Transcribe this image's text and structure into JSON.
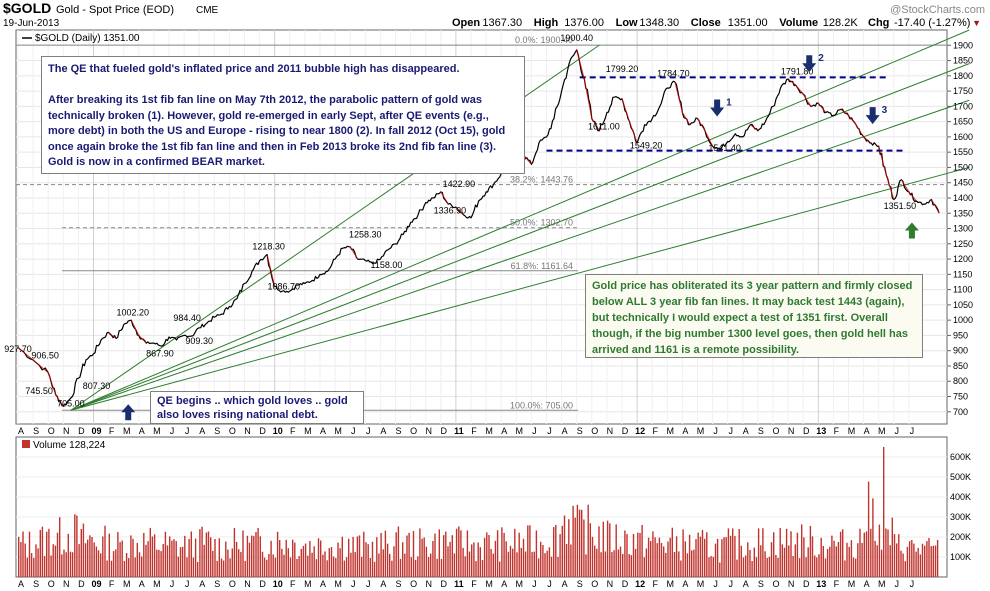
{
  "header": {
    "symbol": "$GOLD",
    "name": "Gold - Spot Price (EOD)",
    "exchange": "CME",
    "date": "19-Jun-2013",
    "watermark": "@StockCharts.com",
    "ohlc": [
      {
        "label": "Open",
        "value": "1367.30"
      },
      {
        "label": "High",
        "value": "1376.00"
      },
      {
        "label": "Low",
        "value": "1348.30"
      },
      {
        "label": "Close",
        "value": "1351.00"
      },
      {
        "label": "Volume",
        "value": "128.2K"
      }
    ],
    "chg_label": "Chg",
    "chg_value": "-17.40 (-1.27%)",
    "chg_symbol": "▼"
  },
  "colors": {
    "price_line": "#000000",
    "price_down": "#cc0000",
    "fan_line": "#2e7d2e",
    "resistance_line": "#00008b",
    "fib_line": "#888888",
    "volume_bar": "#c0342e",
    "arrow_blue": "#1a2e6e",
    "arrow_green": "#2e7d2e"
  },
  "chart_data": [
    {
      "type": "line",
      "title": "$GOLD (Daily) 1351.00",
      "ylim": [
        660,
        1950
      ],
      "y_ticks": [
        700,
        750,
        800,
        850,
        900,
        950,
        1000,
        1050,
        1100,
        1150,
        1200,
        1250,
        1300,
        1350,
        1400,
        1450,
        1500,
        1550,
        1600,
        1650,
        1700,
        1750,
        1800,
        1850,
        1900
      ],
      "x_tick_labels": [
        "A",
        "S",
        "O",
        "N",
        "D",
        "09",
        "F",
        "M",
        "A",
        "M",
        "J",
        "J",
        "A",
        "S",
        "O",
        "N",
        "D",
        "10",
        "F",
        "M",
        "A",
        "M",
        "J",
        "J",
        "A",
        "S",
        "O",
        "N",
        "D",
        "11",
        "F",
        "M",
        "A",
        "M",
        "J",
        "J",
        "A",
        "S",
        "O",
        "N",
        "D",
        "12",
        "F",
        "M",
        "A",
        "M",
        "J",
        "J",
        "A",
        "S",
        "O",
        "N",
        "D",
        "13",
        "F",
        "M",
        "A",
        "M",
        "J",
        "J"
      ],
      "x_tick_bold": [
        "09",
        "10",
        "11",
        "12",
        "13"
      ],
      "x_start": "2008-08",
      "price": [
        [
          0,
          910
        ],
        [
          1,
          870
        ],
        [
          2,
          828
        ],
        [
          2.5,
          755
        ],
        [
          3,
          718
        ],
        [
          3.5,
          745
        ],
        [
          4,
          810
        ],
        [
          4.5,
          870
        ],
        [
          5,
          890
        ],
        [
          5.5,
          935
        ],
        [
          6,
          960
        ],
        [
          6.5,
          940
        ],
        [
          7,
          985
        ],
        [
          7.5,
          1000
        ],
        [
          8,
          950
        ],
        [
          8.5,
          925
        ],
        [
          9,
          925
        ],
        [
          9.5,
          915
        ],
        [
          10,
          945
        ],
        [
          10.5,
          935
        ],
        [
          11,
          950
        ],
        [
          11.5,
          948
        ],
        [
          12,
          975
        ],
        [
          12.5,
          990
        ],
        [
          13,
          1010
        ],
        [
          13.5,
          1020
        ],
        [
          14,
          1045
        ],
        [
          14.5,
          1070
        ],
        [
          15,
          1120
        ],
        [
          15.5,
          1160
        ],
        [
          16,
          1195
        ],
        [
          16.5,
          1215
        ],
        [
          17,
          1110
        ],
        [
          17.5,
          1095
        ],
        [
          18,
          1095
        ],
        [
          18.5,
          1115
        ],
        [
          19,
          1120
        ],
        [
          19.5,
          1130
        ],
        [
          20,
          1150
        ],
        [
          20.5,
          1160
        ],
        [
          21,
          1200
        ],
        [
          21.5,
          1235
        ],
        [
          22,
          1240
        ],
        [
          22.5,
          1200
        ],
        [
          23,
          1195
        ],
        [
          23.5,
          1185
        ],
        [
          24,
          1200
        ],
        [
          24.5,
          1230
        ],
        [
          25,
          1250
        ],
        [
          25.5,
          1280
        ],
        [
          26,
          1320
        ],
        [
          26.5,
          1345
        ],
        [
          27,
          1385
        ],
        [
          27.5,
          1400
        ],
        [
          28,
          1420
        ],
        [
          28.5,
          1380
        ],
        [
          29,
          1370
        ],
        [
          29.5,
          1345
        ],
        [
          30,
          1335
        ],
        [
          30.5,
          1390
        ],
        [
          31,
          1420
        ],
        [
          31.5,
          1445
        ],
        [
          32,
          1480
        ],
        [
          32.5,
          1505
        ],
        [
          33,
          1530
        ],
        [
          33.5,
          1540
        ],
        [
          34,
          1510
        ],
        [
          34.5,
          1580
        ],
        [
          35,
          1600
        ],
        [
          35.5,
          1660
        ],
        [
          36,
          1750
        ],
        [
          36.5,
          1840
        ],
        [
          37,
          1885
        ],
        [
          37.5,
          1790
        ],
        [
          38,
          1660
        ],
        [
          38.5,
          1620
        ],
        [
          39,
          1680
        ],
        [
          39.5,
          1730
        ],
        [
          40,
          1725
        ],
        [
          40.5,
          1650
        ],
        [
          41,
          1580
        ],
        [
          41.5,
          1640
        ],
        [
          42,
          1660
        ],
        [
          42.5,
          1700
        ],
        [
          43,
          1760
        ],
        [
          43.5,
          1780
        ],
        [
          44,
          1680
        ],
        [
          44.5,
          1640
        ],
        [
          45,
          1660
        ],
        [
          45.5,
          1620
        ],
        [
          46,
          1570
        ],
        [
          46.5,
          1560
        ],
        [
          47,
          1585
        ],
        [
          47.5,
          1610
        ],
        [
          48,
          1600
        ],
        [
          48.5,
          1640
        ],
        [
          49,
          1620
        ],
        [
          49.5,
          1650
        ],
        [
          50,
          1700
        ],
        [
          50.5,
          1760
        ],
        [
          51,
          1790
        ],
        [
          51.5,
          1770
        ],
        [
          52,
          1740
        ],
        [
          52.5,
          1700
        ],
        [
          53,
          1710
        ],
        [
          53.5,
          1680
        ],
        [
          54,
          1670
        ],
        [
          54.5,
          1690
        ],
        [
          55,
          1670
        ],
        [
          55.5,
          1640
        ],
        [
          56,
          1600
        ],
        [
          56.5,
          1580
        ],
        [
          57,
          1570
        ],
        [
          57.5,
          1475
        ],
        [
          58,
          1395
        ],
        [
          58.5,
          1460
        ],
        [
          59,
          1420
        ],
        [
          59.5,
          1390
        ],
        [
          60,
          1380
        ],
        [
          60.5,
          1395
        ],
        [
          61,
          1351
        ]
      ],
      "fib_levels": [
        {
          "label": "0.0%: 1900.40",
          "value": 1900.4
        },
        {
          "label": "38.2%: 1443.76",
          "value": 1443.76
        },
        {
          "label": "50.0%: 1302.70",
          "value": 1302.7
        },
        {
          "label": "61.8%: 1161.64",
          "value": 1161.64
        },
        {
          "label": "100.0%: 705.00",
          "value": 705
        }
      ],
      "resistance_levels": [
        1795,
        1555
      ],
      "fan_lines": [
        {
          "from": [
            3.5,
            705
          ],
          "to": [
            38.5,
            1900.4
          ]
        },
        {
          "from": [
            3.5,
            705
          ],
          "to": [
            63,
            1950
          ]
        },
        {
          "from": [
            3.5,
            705
          ],
          "to": [
            63,
            1840
          ]
        },
        {
          "from": [
            3.5,
            705
          ],
          "to": [
            63,
            1720
          ]
        },
        {
          "from": [
            3.5,
            705
          ],
          "to": [
            63,
            1500
          ]
        }
      ],
      "price_labels": [
        {
          "text": "927.70",
          "x": 0,
          "y": 927.7
        },
        {
          "text": "906.50",
          "x": 1.8,
          "y": 906.5
        },
        {
          "text": "745.50",
          "x": 1.4,
          "y": 745.5
        },
        {
          "text": "705.00",
          "x": 3.5,
          "y": 705
        },
        {
          "text": "807.30",
          "x": 5.2,
          "y": 807.3
        },
        {
          "text": "1002.20",
          "x": 7.6,
          "y": 1002.2
        },
        {
          "text": "867.90",
          "x": 9.4,
          "y": 867.9
        },
        {
          "text": "984.40",
          "x": 11.2,
          "y": 984.4
        },
        {
          "text": "909.30",
          "x": 12,
          "y": 909.3
        },
        {
          "text": "1218.30",
          "x": 16.6,
          "y": 1218.3
        },
        {
          "text": "1086.70",
          "x": 17.6,
          "y": 1086.7
        },
        {
          "text": "1258.30",
          "x": 23,
          "y": 1258.3
        },
        {
          "text": "1158.00",
          "x": 24.4,
          "y": 1158
        },
        {
          "text": "1336.90",
          "x": 28.6,
          "y": 1336.9
        },
        {
          "text": "1422.90",
          "x": 29.2,
          "y": 1422.9
        },
        {
          "text": "1900.40",
          "x": 37,
          "y": 1900.4
        },
        {
          "text": "1799.20",
          "x": 40,
          "y": 1799.2
        },
        {
          "text": "1611.00",
          "x": 38.8,
          "y": 1611
        },
        {
          "text": "1784.70",
          "x": 43.4,
          "y": 1784.7
        },
        {
          "text": "1549.20",
          "x": 41.6,
          "y": 1549.2
        },
        {
          "text": "1541.40",
          "x": 46.8,
          "y": 1541.4
        },
        {
          "text": "1791.80",
          "x": 51.6,
          "y": 1791.8
        },
        {
          "text": "1351.50",
          "x": 58.4,
          "y": 1351.5
        }
      ],
      "down_arrows": [
        {
          "label": "1",
          "x": 46.3,
          "y": 1670
        },
        {
          "label": "2",
          "x": 52.4,
          "y": 1815
        },
        {
          "label": "3",
          "x": 56.6,
          "y": 1645
        }
      ],
      "up_arrows": [
        {
          "label": "",
          "x": 7.3,
          "y": 705,
          "color": "blue"
        },
        {
          "label": "",
          "x": 59.2,
          "y": 1300,
          "color": "green"
        }
      ]
    },
    {
      "type": "bar",
      "title": "Volume 128,224",
      "ylim": [
        0,
        700
      ],
      "y_tick_labels": [
        "100K",
        "200K",
        "300K",
        "400K",
        "500K",
        "600K"
      ],
      "y_tick_values": [
        100,
        200,
        300,
        400,
        500,
        600
      ],
      "monthly_volume_k": [
        170,
        190,
        210,
        230,
        195,
        180,
        165,
        175,
        180,
        170,
        160,
        165,
        180,
        160,
        170,
        175,
        180,
        185,
        175,
        165,
        170,
        175,
        160,
        155,
        165,
        175,
        170,
        180,
        185,
        175,
        165,
        170,
        175,
        180,
        190,
        210,
        300,
        250,
        220,
        200,
        195,
        185,
        180,
        175,
        170,
        165,
        160,
        170,
        175,
        180,
        185,
        190,
        180,
        175,
        170,
        190,
        330,
        220,
        160,
        150,
        140
      ],
      "spike_month": 57,
      "spike_value_k": 650
    }
  ],
  "annotations": {
    "top_box": "The QE that fueled gold's inflated price and 2011 bubble high has disappeared.\n\nAfter breaking its 1st fib fan line on May 7th 2012, the parabolic pattern of gold was technically broken (1).  However, gold re-emerged in early Sept, after QE events (e.g., more debt) in both the US and Europe - rising to near 1800 (2).  In fall 2012 (Oct 15), gold once again broke the 1st fib fan line and then in Feb 2013 broke its 2nd fib fan line (3).  Gold is now in a confirmed BEAR market.",
    "qe_box": "QE begins .. which gold loves .. gold also loves rising national debt.",
    "green_box": "Gold price has obliterated its 3 year pattern and firmly closed below ALL 3 year fib fan lines.  It may back test 1443 (again), but technically I would expect a test of 1351 first.  Overall though, if the big number 1300 level goes, then gold hell has arrived and 1161 is a remote possibility."
  }
}
